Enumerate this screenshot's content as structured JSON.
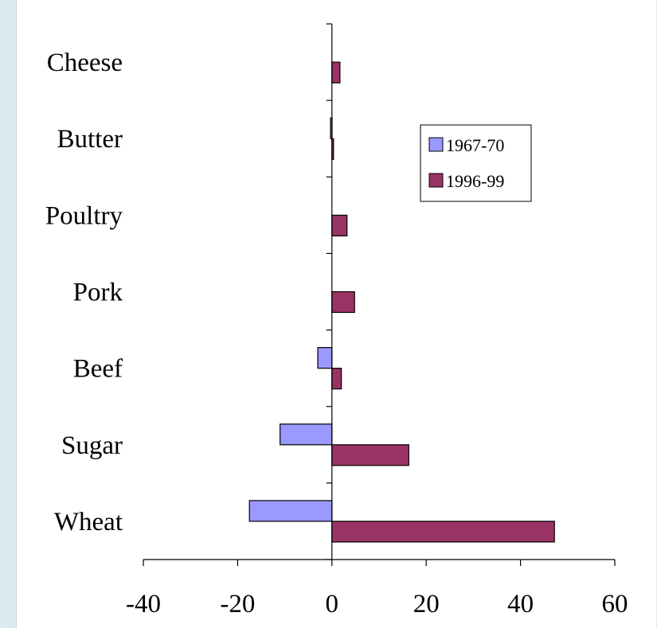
{
  "chart_data": {
    "type": "bar",
    "orientation": "horizontal",
    "title": "",
    "xlabel": "",
    "ylabel": "",
    "categories": [
      "Cheese",
      "Butter",
      "Poultry",
      "Pork",
      "Beef",
      "Sugar",
      "Wheat"
    ],
    "series": [
      {
        "name": "1967-70",
        "color": "#9999ff",
        "values": [
          0,
          -0.3,
          0,
          0,
          -3,
          -11,
          -17.5
        ]
      },
      {
        "name": "1996-99",
        "color": "#993366",
        "values": [
          1.7,
          0.3,
          3.2,
          4.8,
          2,
          16.3,
          47.2
        ]
      }
    ],
    "xlim": [
      -40,
      60
    ],
    "xticks": [
      -40,
      -20,
      0,
      20,
      40,
      60
    ],
    "grid": false,
    "legend": "upper-right"
  }
}
